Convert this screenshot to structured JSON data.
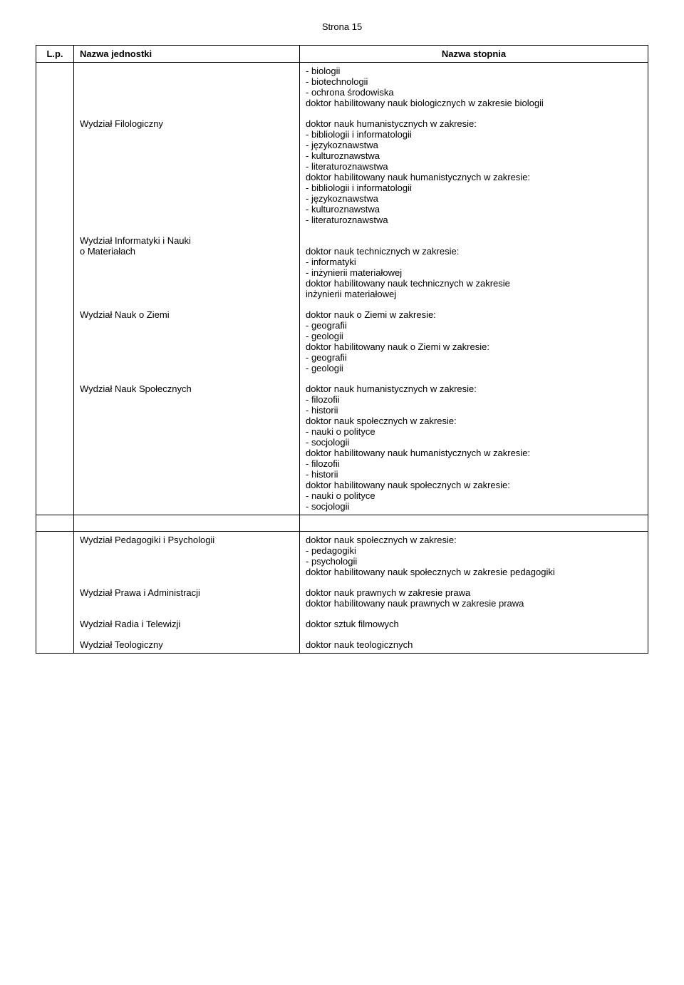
{
  "page_label": "Strona 15",
  "columns": {
    "lp": "L.p.",
    "unit": "Nazwa jednostki",
    "degree": "Nazwa stopnia"
  },
  "rows": [
    {
      "unit_lines": [
        ""
      ],
      "degree_lines": [
        "- biologii",
        "- biotechnologii",
        "- ochrona środowiska",
        "doktor habilitowany nauk biologicznych w zakresie biologii"
      ]
    },
    {
      "unit_lines": [
        "Wydział Filologiczny"
      ],
      "degree_lines": [
        "doktor nauk humanistycznych w zakresie:",
        "- bibliologii i informatologii",
        "- językoznawstwa",
        "- kulturoznawstwa",
        "- literaturoznawstwa",
        "doktor habilitowany nauk humanistycznych w zakresie:",
        "- bibliologii i informatologii",
        "- językoznawstwa",
        "- kulturoznawstwa",
        "- literaturoznawstwa"
      ]
    },
    {
      "unit_lines": [
        "Wydział Informatyki i Nauki",
        "o Materiałach"
      ],
      "degree_lines": [
        "",
        "doktor nauk technicznych w zakresie:",
        "- informatyki",
        " - inżynierii materiałowej",
        "doktor habilitowany nauk technicznych w zakresie",
        "inżynierii materiałowej"
      ]
    },
    {
      "unit_lines": [
        "Wydział Nauk o Ziemi"
      ],
      "degree_lines": [
        "doktor nauk o Ziemi w zakresie:",
        "- geografii",
        "- geologii",
        "doktor habilitowany nauk o Ziemi w zakresie:",
        "- geografii",
        "- geologii"
      ]
    },
    {
      "unit_lines": [
        "Wydział Nauk Społecznych"
      ],
      "degree_lines": [
        "doktor nauk humanistycznych w zakresie:",
        "- filozofii",
        "- historii",
        "doktor nauk społecznych w zakresie:",
        "- nauki o polityce",
        "- socjologii",
        "doktor habilitowany nauk humanistycznych w zakresie:",
        "- filozofii",
        "- historii",
        "doktor habilitowany nauk społecznych w zakresie:",
        "- nauki o polityce",
        "- socjologii"
      ]
    },
    {
      "unit_lines": [
        "Wydział Pedagogiki i Psychologii"
      ],
      "degree_lines": [
        "doktor nauk społecznych w zakresie:",
        "- pedagogiki",
        "- psychologii",
        "doktor habilitowany nauk społecznych w zakresie pedagogiki"
      ]
    },
    {
      "unit_lines": [
        "Wydział Prawa i Administracji"
      ],
      "degree_lines": [
        "doktor nauk prawnych w zakresie prawa",
        "doktor habilitowany nauk prawnych w zakresie prawa"
      ]
    },
    {
      "unit_lines": [
        "Wydział Radia i Telewizji"
      ],
      "degree_lines": [
        "doktor sztuk filmowych"
      ]
    },
    {
      "unit_lines": [
        "Wydział Teologiczny"
      ],
      "degree_lines": [
        "doktor nauk teologicznych"
      ]
    }
  ],
  "group1_count": 5,
  "group2_count": 4
}
